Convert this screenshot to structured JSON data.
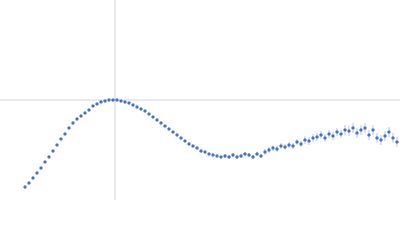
{
  "chart_data": {
    "type": "scatter",
    "color": "#4472c4",
    "xlim": [
      -115,
      285
    ],
    "ylim": [
      -100,
      100
    ],
    "x": [
      -90,
      -86,
      -82,
      -78,
      -74,
      -70,
      -66,
      -62,
      -58,
      -54,
      -50,
      -46,
      -42,
      -38,
      -34,
      -30,
      -26,
      -22,
      -18,
      -14,
      -10,
      -6,
      -2,
      2,
      6,
      10,
      14,
      18,
      22,
      26,
      30,
      34,
      38,
      42,
      46,
      50,
      54,
      58,
      62,
      66,
      70,
      74,
      78,
      82,
      86,
      90,
      94,
      98,
      102,
      106,
      110,
      114,
      118,
      122,
      126,
      130,
      134,
      138,
      142,
      146,
      150,
      154,
      158,
      162,
      166,
      170,
      174,
      178,
      182,
      186,
      190,
      194,
      198,
      202,
      206,
      210,
      214,
      218,
      222,
      226,
      230,
      234,
      238,
      242,
      246,
      250,
      254,
      258,
      262,
      266,
      270,
      274,
      278,
      282
    ],
    "values": [
      -87,
      -83,
      -78,
      -73,
      -68,
      -62,
      -57,
      -51,
      -45,
      -39,
      -34,
      -28,
      -23,
      -19,
      -16,
      -13,
      -10,
      -6,
      -4,
      -2,
      -1,
      0,
      0,
      0,
      -1,
      -2,
      -3,
      -5,
      -7,
      -9,
      -11,
      -14,
      -17,
      -20,
      -23,
      -26,
      -29,
      -32,
      -35,
      -38,
      -41,
      -44,
      -46,
      -48,
      -51,
      -52,
      -54,
      -55,
      -56,
      -57,
      -56,
      -57,
      -55,
      -57,
      -56,
      -54,
      -55,
      -57,
      -54,
      -56,
      -52,
      -50,
      -48,
      -49,
      -46,
      -47,
      -45,
      -46,
      -42,
      -44,
      -40,
      -41,
      -38,
      -37,
      -35,
      -38,
      -34,
      -36,
      -32,
      -34,
      -30,
      -31,
      -28,
      -33,
      -30,
      -28,
      -35,
      -30,
      -38,
      -40,
      -36,
      -32,
      -38,
      -42
    ],
    "errors": [
      1,
      1,
      1,
      1,
      1,
      1,
      1,
      1,
      1,
      1,
      1,
      1,
      1,
      1,
      1,
      1,
      1,
      1,
      1,
      1,
      1,
      1,
      1,
      1,
      1,
      1,
      1,
      1,
      1,
      1,
      1.5,
      1.5,
      1.5,
      1.5,
      1.5,
      1.5,
      1.5,
      1.5,
      1.5,
      1.5,
      1.5,
      1.5,
      1.5,
      1.5,
      1.5,
      1.5,
      1.5,
      1.5,
      1.5,
      1.5,
      2,
      2,
      2,
      2,
      2,
      2,
      2,
      2,
      2,
      2,
      3,
      3,
      3,
      3,
      3,
      3,
      3,
      3,
      3,
      3,
      4,
      4,
      4,
      4,
      4,
      4,
      4,
      4,
      4,
      4,
      5,
      5,
      5,
      5,
      5,
      5,
      5,
      5,
      5,
      5,
      5,
      5,
      5,
      5
    ]
  }
}
